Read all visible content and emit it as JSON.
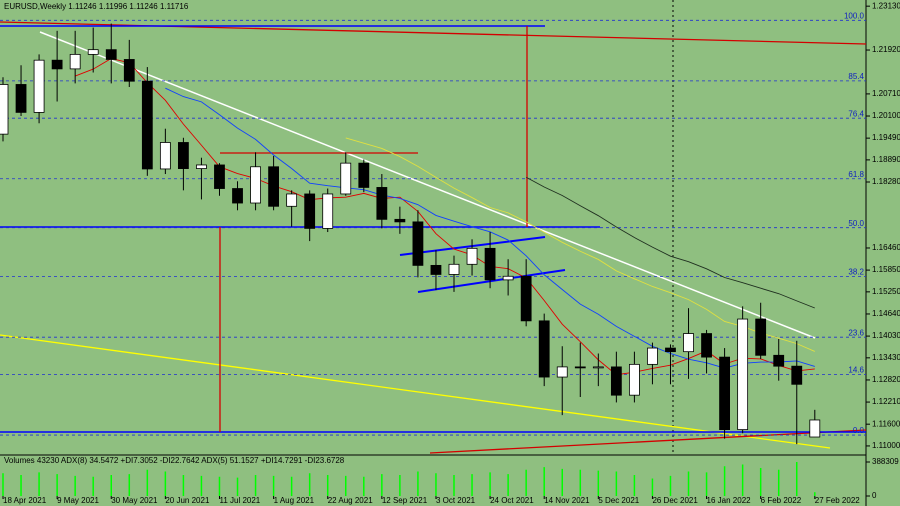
{
  "chart_data": {
    "type": "candlestick",
    "title": "EURUSD,Weekly  1.11246 1.11996 1.11246 1.11716",
    "indicator_title": "Volumes 43230  ADX(8) 34.5472 +DI7.3052 -DI22.7642  ADX(5) 51.1527 +DI14.7291 -DI23.6728",
    "x": [
      "18 Apr 2021",
      null,
      null,
      "9 May 2021",
      null,
      null,
      "30 May 2021",
      null,
      null,
      "20 Jun 2021",
      null,
      null,
      "11 Jul 2021",
      null,
      null,
      "1 Aug 2021",
      null,
      null,
      "22 Aug 2021",
      null,
      null,
      "12 Sep 2021",
      null,
      null,
      "3 Oct 2021",
      null,
      null,
      "24 Oct 2021",
      null,
      null,
      "14 Nov 2021",
      null,
      null,
      "5 Dec 2021",
      null,
      null,
      "26 Dec 2021",
      null,
      null,
      "16 Jan 2022",
      null,
      null,
      "6 Feb 2022",
      null,
      null,
      "27 Feb 2022"
    ],
    "open": [
      1.196,
      1.2097,
      1.202,
      1.2164,
      1.214,
      1.218,
      1.2193,
      1.2166,
      1.2106,
      1.1864,
      1.1937,
      1.1865,
      1.1875,
      1.181,
      1.177,
      1.187,
      1.1761,
      1.1795,
      1.17,
      1.1795,
      1.188,
      1.1813,
      1.1725,
      1.1718,
      1.1598,
      1.1573,
      1.1601,
      1.1645,
      1.1558,
      1.1568,
      1.1445,
      1.129,
      1.1318,
      1.1316,
      1.1318,
      1.124,
      1.1325,
      1.137,
      1.136,
      1.141,
      1.1345,
      1.1145,
      1.145,
      1.135,
      1.132,
      1.11246
    ],
    "high": [
      1.2117,
      1.215,
      1.218,
      1.2245,
      1.2245,
      1.2254,
      1.2265,
      1.222,
      1.2145,
      1.1975,
      1.195,
      1.1895,
      1.188,
      1.183,
      1.191,
      1.19,
      1.1805,
      1.1805,
      1.181,
      1.191,
      1.189,
      1.185,
      1.176,
      1.175,
      1.164,
      1.1625,
      1.167,
      1.169,
      1.1615,
      1.1615,
      1.1465,
      1.1375,
      1.1385,
      1.1355,
      1.136,
      1.136,
      1.1385,
      1.138,
      1.148,
      1.142,
      1.137,
      1.1485,
      1.1495,
      1.1395,
      1.139,
      1.11996
    ],
    "low": [
      1.194,
      1.201,
      1.199,
      1.205,
      1.21,
      1.213,
      1.21,
      1.209,
      1.1845,
      1.185,
      1.1805,
      1.178,
      1.179,
      1.175,
      1.175,
      1.175,
      1.1705,
      1.1665,
      1.169,
      1.179,
      1.18,
      1.17,
      1.1685,
      1.1565,
      1.153,
      1.1525,
      1.157,
      1.1535,
      1.1515,
      1.143,
      1.1265,
      1.1185,
      1.1235,
      1.1265,
      1.122,
      1.122,
      1.127,
      1.127,
      1.1285,
      1.13,
      1.112,
      1.1135,
      1.134,
      1.128,
      1.1105,
      1.11246
    ],
    "close": [
      1.2097,
      1.202,
      1.2164,
      1.214,
      1.218,
      1.2193,
      1.2166,
      1.2106,
      1.1864,
      1.1937,
      1.1865,
      1.1875,
      1.181,
      1.177,
      1.187,
      1.1761,
      1.1795,
      1.17,
      1.1795,
      1.188,
      1.1813,
      1.1725,
      1.1718,
      1.1598,
      1.1573,
      1.1601,
      1.1645,
      1.1558,
      1.1568,
      1.1445,
      1.129,
      1.1318,
      1.1316,
      1.1318,
      1.124,
      1.1325,
      1.137,
      1.136,
      1.141,
      1.1345,
      1.1145,
      1.145,
      1.135,
      1.132,
      1.127,
      1.11716
    ],
    "volumes": [
      260000,
      240000,
      270000,
      250000,
      230000,
      220000,
      240000,
      250000,
      300000,
      280000,
      240000,
      230000,
      220000,
      210000,
      240000,
      230000,
      220000,
      260000,
      240000,
      230000,
      220000,
      250000,
      240000,
      280000,
      260000,
      240000,
      250000,
      270000,
      250000,
      300000,
      330000,
      310000,
      300000,
      290000,
      280000,
      240000,
      200000,
      230000,
      280000,
      270000,
      340000,
      360000,
      320000,
      300000,
      388309,
      43230
    ],
    "ylim": [
      1.1075,
      1.233
    ],
    "yticks": [
      {
        "value": 1.2313,
        "label": "1.23130"
      },
      {
        "value": 1.2192,
        "label": "1.21920"
      },
      {
        "value": 1.2071,
        "label": "1.20710"
      },
      {
        "value": 1.201,
        "label": "1.20100"
      },
      {
        "value": 1.1949,
        "label": "1.19490"
      },
      {
        "value": 1.1889,
        "label": "1.18890"
      },
      {
        "value": 1.1828,
        "label": "1.18280"
      },
      {
        "value": 1.1646,
        "label": "1.16460"
      },
      {
        "value": 1.1585,
        "label": "1.15850"
      },
      {
        "value": 1.1525,
        "label": "1.15250"
      },
      {
        "value": 1.1464,
        "label": "1.14640"
      },
      {
        "value": 1.1403,
        "label": "1.14030"
      },
      {
        "value": 1.1343,
        "label": "1.13430"
      },
      {
        "value": 1.1282,
        "label": "1.12820"
      },
      {
        "value": 1.1221,
        "label": "1.12210"
      },
      {
        "value": 1.116,
        "label": "1.11600"
      },
      {
        "value": 1.11,
        "label": "1.11000"
      }
    ],
    "vlim": [
      0,
      388309
    ],
    "vticks": [
      388309,
      0
    ],
    "fib_high": 1.2274,
    "fib_low": 1.113,
    "fib_levels": [
      {
        "value": 100,
        "label": "100.0"
      },
      {
        "value": 85.4,
        "label": "85.4"
      },
      {
        "value": 76.4,
        "label": "76.4"
      },
      {
        "value": 61.8,
        "label": "61.8"
      },
      {
        "value": 50,
        "label": "50.0"
      },
      {
        "value": 38.2,
        "label": "38.2"
      },
      {
        "value": 23.6,
        "label": "23.6"
      },
      {
        "value": 14.6,
        "label": "14.6"
      },
      {
        "value": 0,
        "label": "0.0"
      }
    ],
    "up_color": "#ffffff",
    "down_color": "#000000",
    "volume_color": "#00ff00"
  }
}
